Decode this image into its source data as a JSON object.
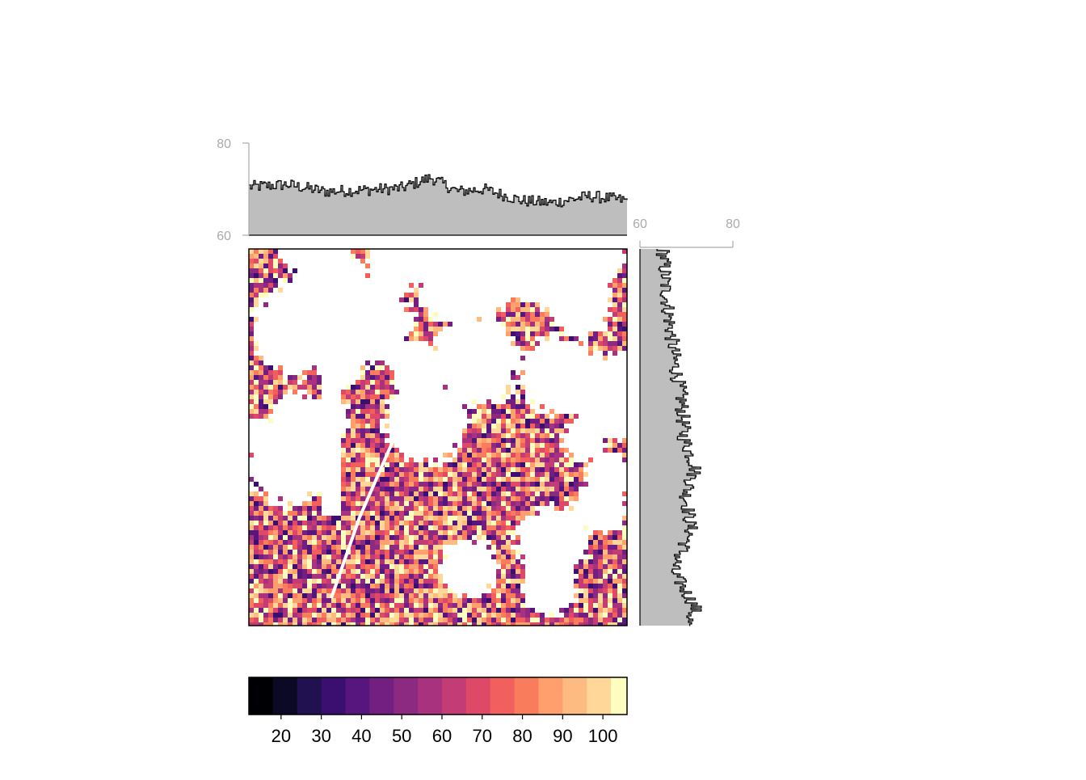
{
  "chart_data": [
    {
      "type": "heatmap",
      "title": "",
      "xlabel": "",
      "ylabel": "",
      "colormap": "magma",
      "missing_color": "#ffffff",
      "value_range": [
        12,
        106
      ],
      "description": "raster map with missing (white) patches"
    },
    {
      "type": "area",
      "orientation": "horizontal-profile",
      "ylim": [
        60,
        80
      ],
      "y_ticks": [
        60,
        80
      ],
      "fill": "#bebebe",
      "line_color": "#000000",
      "approx_trend": [
        {
          "x": 0.0,
          "y": 70.5
        },
        {
          "x": 0.1,
          "y": 71.0
        },
        {
          "x": 0.2,
          "y": 69.5
        },
        {
          "x": 0.3,
          "y": 69.8
        },
        {
          "x": 0.4,
          "y": 70.2
        },
        {
          "x": 0.48,
          "y": 72.5
        },
        {
          "x": 0.55,
          "y": 69.5
        },
        {
          "x": 0.62,
          "y": 70.0
        },
        {
          "x": 0.72,
          "y": 67.5
        },
        {
          "x": 0.8,
          "y": 67.0
        },
        {
          "x": 0.9,
          "y": 68.5
        },
        {
          "x": 1.0,
          "y": 67.5
        }
      ]
    },
    {
      "type": "area",
      "orientation": "vertical-profile",
      "xlim": [
        60,
        80
      ],
      "x_ticks": [
        60,
        80
      ],
      "fill": "#bebebe",
      "line_color": "#000000",
      "approx_trend": [
        {
          "y": 0.0,
          "x": 65.0
        },
        {
          "y": 0.1,
          "x": 65.5
        },
        {
          "y": 0.2,
          "x": 66.5
        },
        {
          "y": 0.3,
          "x": 67.5
        },
        {
          "y": 0.4,
          "x": 69.0
        },
        {
          "y": 0.5,
          "x": 69.5
        },
        {
          "y": 0.58,
          "x": 72.0
        },
        {
          "y": 0.65,
          "x": 70.0
        },
        {
          "y": 0.75,
          "x": 71.0
        },
        {
          "y": 0.85,
          "x": 67.0
        },
        {
          "y": 0.95,
          "x": 72.0
        },
        {
          "y": 1.0,
          "x": 70.0
        }
      ]
    },
    {
      "type": "legend-colorbar",
      "breaks": [
        12,
        18,
        24,
        30,
        36,
        42,
        48,
        54,
        60,
        66,
        72,
        78,
        84,
        90,
        96,
        102,
        106
      ],
      "tick_labels": [
        "20",
        "30",
        "40",
        "50",
        "60",
        "70",
        "80",
        "90",
        "100"
      ],
      "tick_values": [
        20,
        30,
        40,
        50,
        60,
        70,
        80,
        90,
        100
      ],
      "colors": [
        "#000004",
        "#0c0926",
        "#221150",
        "#3b0f70",
        "#57157e",
        "#721f81",
        "#8c2981",
        "#a8327d",
        "#c43c75",
        "#de4968",
        "#f1605d",
        "#f97c5d",
        "#fe9f6d",
        "#febb81",
        "#fed799",
        "#fcfdbf"
      ]
    }
  ]
}
